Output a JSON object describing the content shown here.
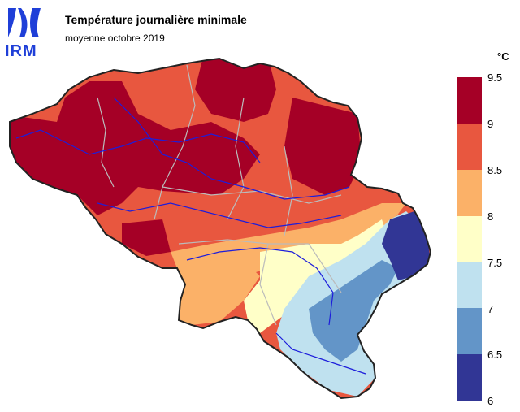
{
  "header": {
    "logo_text": "IRM",
    "title": "Température journalière minimale",
    "subtitle": "moyenne octobre 2019"
  },
  "legend": {
    "unit": "°C",
    "ticks": [
      "9.5",
      "9",
      "8.5",
      "8",
      "7.5",
      "7",
      "6.5",
      "6"
    ],
    "colors": [
      "#a50026",
      "#e8573f",
      "#fbb168",
      "#ffffc8",
      "#bfe1ef",
      "#6395c8",
      "#313695"
    ]
  },
  "map": {
    "regions": [
      {
        "name": "north-warm",
        "range": "9–9.5"
      },
      {
        "name": "central-mild",
        "range": "8.5–9"
      },
      {
        "name": "south-cool",
        "range": "7–8"
      },
      {
        "name": "east-cold",
        "range": "6–6.5"
      }
    ]
  }
}
